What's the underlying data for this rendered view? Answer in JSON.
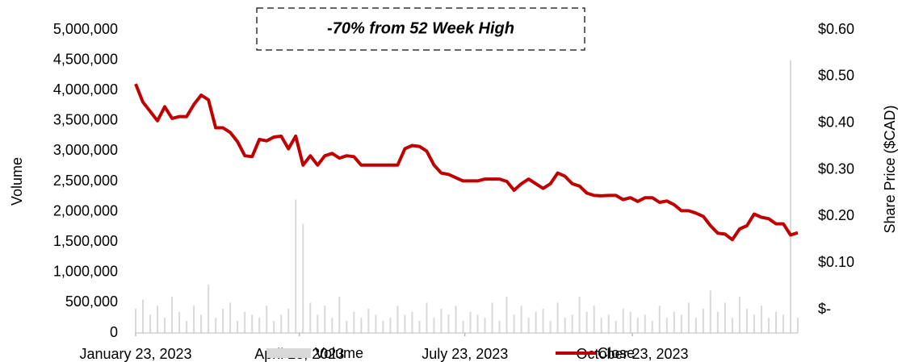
{
  "chart_data": {
    "type": "bar_line",
    "annotation": "-70% from 52 Week High",
    "ylabel": "Volume",
    "y2label": "Share Price ($CAD)",
    "x": [
      "2023-01-23",
      "2023-01-27",
      "2023-01-31",
      "2023-02-04",
      "2023-02-08",
      "2023-02-12",
      "2023-02-16",
      "2023-02-20",
      "2023-02-24",
      "2023-02-28",
      "2023-03-04",
      "2023-03-08",
      "2023-03-12",
      "2023-03-16",
      "2023-03-20",
      "2023-03-24",
      "2023-03-28",
      "2023-04-01",
      "2023-04-05",
      "2023-04-09",
      "2023-04-13",
      "2023-04-17",
      "2023-04-21",
      "2023-04-25",
      "2023-04-29",
      "2023-05-03",
      "2023-05-07",
      "2023-05-11",
      "2023-05-15",
      "2023-05-19",
      "2023-05-23",
      "2023-05-27",
      "2023-05-31",
      "2023-06-04",
      "2023-06-08",
      "2023-06-12",
      "2023-06-16",
      "2023-06-20",
      "2023-06-24",
      "2023-06-28",
      "2023-07-02",
      "2023-07-06",
      "2023-07-10",
      "2023-07-14",
      "2023-07-18",
      "2023-07-22",
      "2023-07-26",
      "2023-07-30",
      "2023-08-03",
      "2023-08-07",
      "2023-08-11",
      "2023-08-15",
      "2023-08-19",
      "2023-08-23",
      "2023-08-27",
      "2023-08-31",
      "2023-09-04",
      "2023-09-08",
      "2023-09-12",
      "2023-09-16",
      "2023-09-20",
      "2023-09-24",
      "2023-09-28",
      "2023-10-02",
      "2023-10-06",
      "2023-10-10",
      "2023-10-14",
      "2023-10-18",
      "2023-10-22",
      "2023-10-26",
      "2023-10-30",
      "2023-11-03",
      "2023-11-07",
      "2023-11-11",
      "2023-11-15",
      "2023-11-19",
      "2023-11-23",
      "2023-11-27",
      "2023-12-01",
      "2023-12-05",
      "2023-12-09",
      "2023-12-13",
      "2023-12-17",
      "2023-12-21",
      "2023-12-25",
      "2023-12-29",
      "2024-01-02",
      "2024-01-06",
      "2024-01-10",
      "2024-01-14",
      "2024-01-18",
      "2024-01-22"
    ],
    "series": [
      {
        "name": "Volume",
        "color": "#d9d9d9",
        "values": [
          400000,
          550000,
          300000,
          450000,
          250000,
          600000,
          350000,
          200000,
          450000,
          300000,
          800000,
          250000,
          400000,
          500000,
          200000,
          350000,
          300000,
          250000,
          450000,
          200000,
          300000,
          400000,
          2200000,
          1800000,
          500000,
          300000,
          450000,
          250000,
          600000,
          200000,
          350000,
          250000,
          400000,
          300000,
          200000,
          250000,
          450000,
          300000,
          350000,
          200000,
          500000,
          250000,
          400000,
          300000,
          450000,
          200000,
          350000,
          300000,
          250000,
          500000,
          200000,
          600000,
          300000,
          450000,
          250000,
          350000,
          400000,
          200000,
          500000,
          250000,
          300000,
          600000,
          350000,
          450000,
          250000,
          300000,
          200000,
          400000,
          350000,
          250000,
          300000,
          200000,
          450000,
          250000,
          350000,
          300000,
          500000,
          250000,
          400000,
          700000,
          350000,
          500000,
          250000,
          600000,
          400000,
          300000,
          450000,
          250000,
          350000,
          300000,
          4500000,
          250000
        ]
      },
      {
        "name": "Close",
        "color": "#c00000",
        "axis": "y2",
        "values": [
          0.484,
          0.445,
          0.425,
          0.405,
          0.435,
          0.41,
          0.414,
          0.414,
          0.44,
          0.46,
          0.45,
          0.39,
          0.39,
          0.38,
          0.36,
          0.33,
          0.328,
          0.365,
          0.362,
          0.37,
          0.372,
          0.345,
          0.372,
          0.31,
          0.33,
          0.31,
          0.33,
          0.335,
          0.325,
          0.33,
          0.328,
          0.31,
          0.31,
          0.31,
          0.31,
          0.31,
          0.31,
          0.345,
          0.352,
          0.35,
          0.34,
          0.31,
          0.293,
          0.29,
          0.283,
          0.276,
          0.276,
          0.276,
          0.28,
          0.28,
          0.28,
          0.275,
          0.256,
          0.27,
          0.28,
          0.27,
          0.26,
          0.27,
          0.293,
          0.286,
          0.27,
          0.265,
          0.25,
          0.245,
          0.244,
          0.245,
          0.245,
          0.236,
          0.24,
          0.232,
          0.24,
          0.24,
          0.23,
          0.233,
          0.225,
          0.212,
          0.212,
          0.207,
          0.2,
          0.18,
          0.164,
          0.162,
          0.15,
          0.173,
          0.18,
          0.205,
          0.198,
          0.195,
          0.184,
          0.184,
          0.16,
          0.165
        ]
      }
    ],
    "xlim": [
      "2023-01-23",
      "2024-01-22"
    ],
    "xticks": [
      {
        "value": "2023-01-23",
        "label": "January 23, 2023"
      },
      {
        "value": "2023-04-23",
        "label": "April 23, 2023"
      },
      {
        "value": "2023-07-23",
        "label": "July 23, 2023"
      },
      {
        "value": "2023-10-23",
        "label": "October 23, 2023"
      }
    ],
    "ylim": [
      0,
      5000000
    ],
    "yticks": [
      0,
      {
        "value": 500000,
        "label": "500,000"
      },
      {
        "value": 1000000,
        "label": "1,000,000"
      },
      {
        "value": 1500000,
        "label": "1,500,000"
      },
      {
        "value": 2000000,
        "label": "2,000,000"
      },
      {
        "value": 2500000,
        "label": "2,500,000"
      },
      {
        "value": 3000000,
        "label": "3,000,000"
      },
      {
        "value": 3500000,
        "label": "3,500,000"
      },
      {
        "value": 4000000,
        "label": "4,000,000"
      },
      {
        "value": 4500000,
        "label": "4,500,000"
      },
      {
        "value": 5000000,
        "label": "5,000,000"
      }
    ],
    "y2lim": [
      -0.05,
      0.6
    ],
    "y2ticks": [
      {
        "value": 0,
        "label": "$-"
      },
      {
        "value": 0.1,
        "label": "$0.10"
      },
      {
        "value": 0.2,
        "label": "$0.20"
      },
      {
        "value": 0.3,
        "label": "$0.30"
      },
      {
        "value": 0.4,
        "label": "$0.40"
      },
      {
        "value": 0.5,
        "label": "$0.50"
      },
      {
        "value": 0.6,
        "label": "$0.60"
      }
    ]
  }
}
